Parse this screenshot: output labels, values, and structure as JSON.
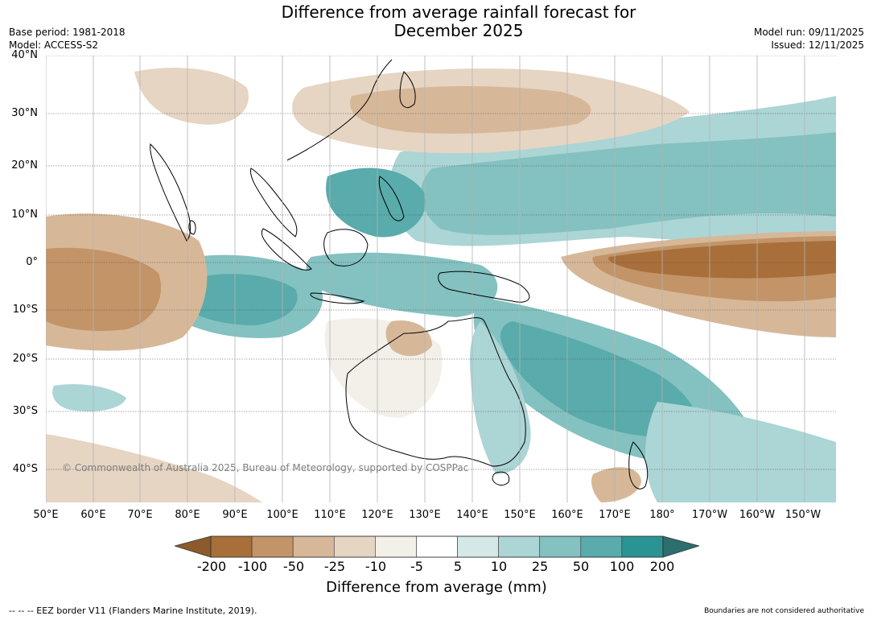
{
  "title": {
    "line1": "Difference from average rainfall forecast for",
    "line2": "December 2025"
  },
  "meta": {
    "base_period": "Base period: 1981-2018",
    "model": "Model: ACCESS-S2",
    "model_run": "Model run: 09/11/2025",
    "issued": "Issued: 12/11/2025"
  },
  "map": {
    "copyright": "© Commonwealth of Australia 2025, Bureau of Meteorology, supported by COSPPac",
    "lat_labels": [
      "40°N",
      "30°N",
      "20°N",
      "10°N",
      "0°",
      "10°S",
      "20°S",
      "30°S",
      "40°S"
    ],
    "lon_labels": [
      "50°E",
      "60°E",
      "70°E",
      "80°E",
      "90°E",
      "100°E",
      "110°E",
      "120°E",
      "130°E",
      "140°E",
      "150°E",
      "160°E",
      "170°E",
      "180°",
      "170°W",
      "160°W",
      "150°W"
    ],
    "colors": {
      "dry_strong": "#a86f3a",
      "dry_mid": "#c29467",
      "dry_light": "#d6b899",
      "dry_faint": "#e6d5c3",
      "dry_trace": "#f3efe9",
      "neutral": "#ffffff",
      "wet_trace": "#d5e8e8",
      "wet_light": "#acd5d5",
      "wet_mid": "#84c1c1",
      "wet_strong": "#5aabab",
      "wet_max": "#2a9494"
    }
  },
  "legend": {
    "tick_labels": [
      "-200",
      "-100",
      "-50",
      "-25",
      "-10",
      "-5",
      "5",
      "10",
      "25",
      "50",
      "100",
      "200"
    ],
    "colors": [
      "#a86f3a",
      "#c29467",
      "#d6b899",
      "#e6d5c3",
      "#f3efe9",
      "#ffffff",
      "#d5e8e8",
      "#acd5d5",
      "#84c1c1",
      "#5aabab",
      "#2a9494"
    ],
    "arrow_low_color": "#8c5a2b",
    "arrow_high_color": "#2d6e6e",
    "title": "Difference from average (mm)"
  },
  "footer": {
    "eez": "--  --  -- EEZ border V11 (Flanders Marine Institute, 2019).",
    "disclaimer": "Boundaries are not considered authoritative"
  }
}
